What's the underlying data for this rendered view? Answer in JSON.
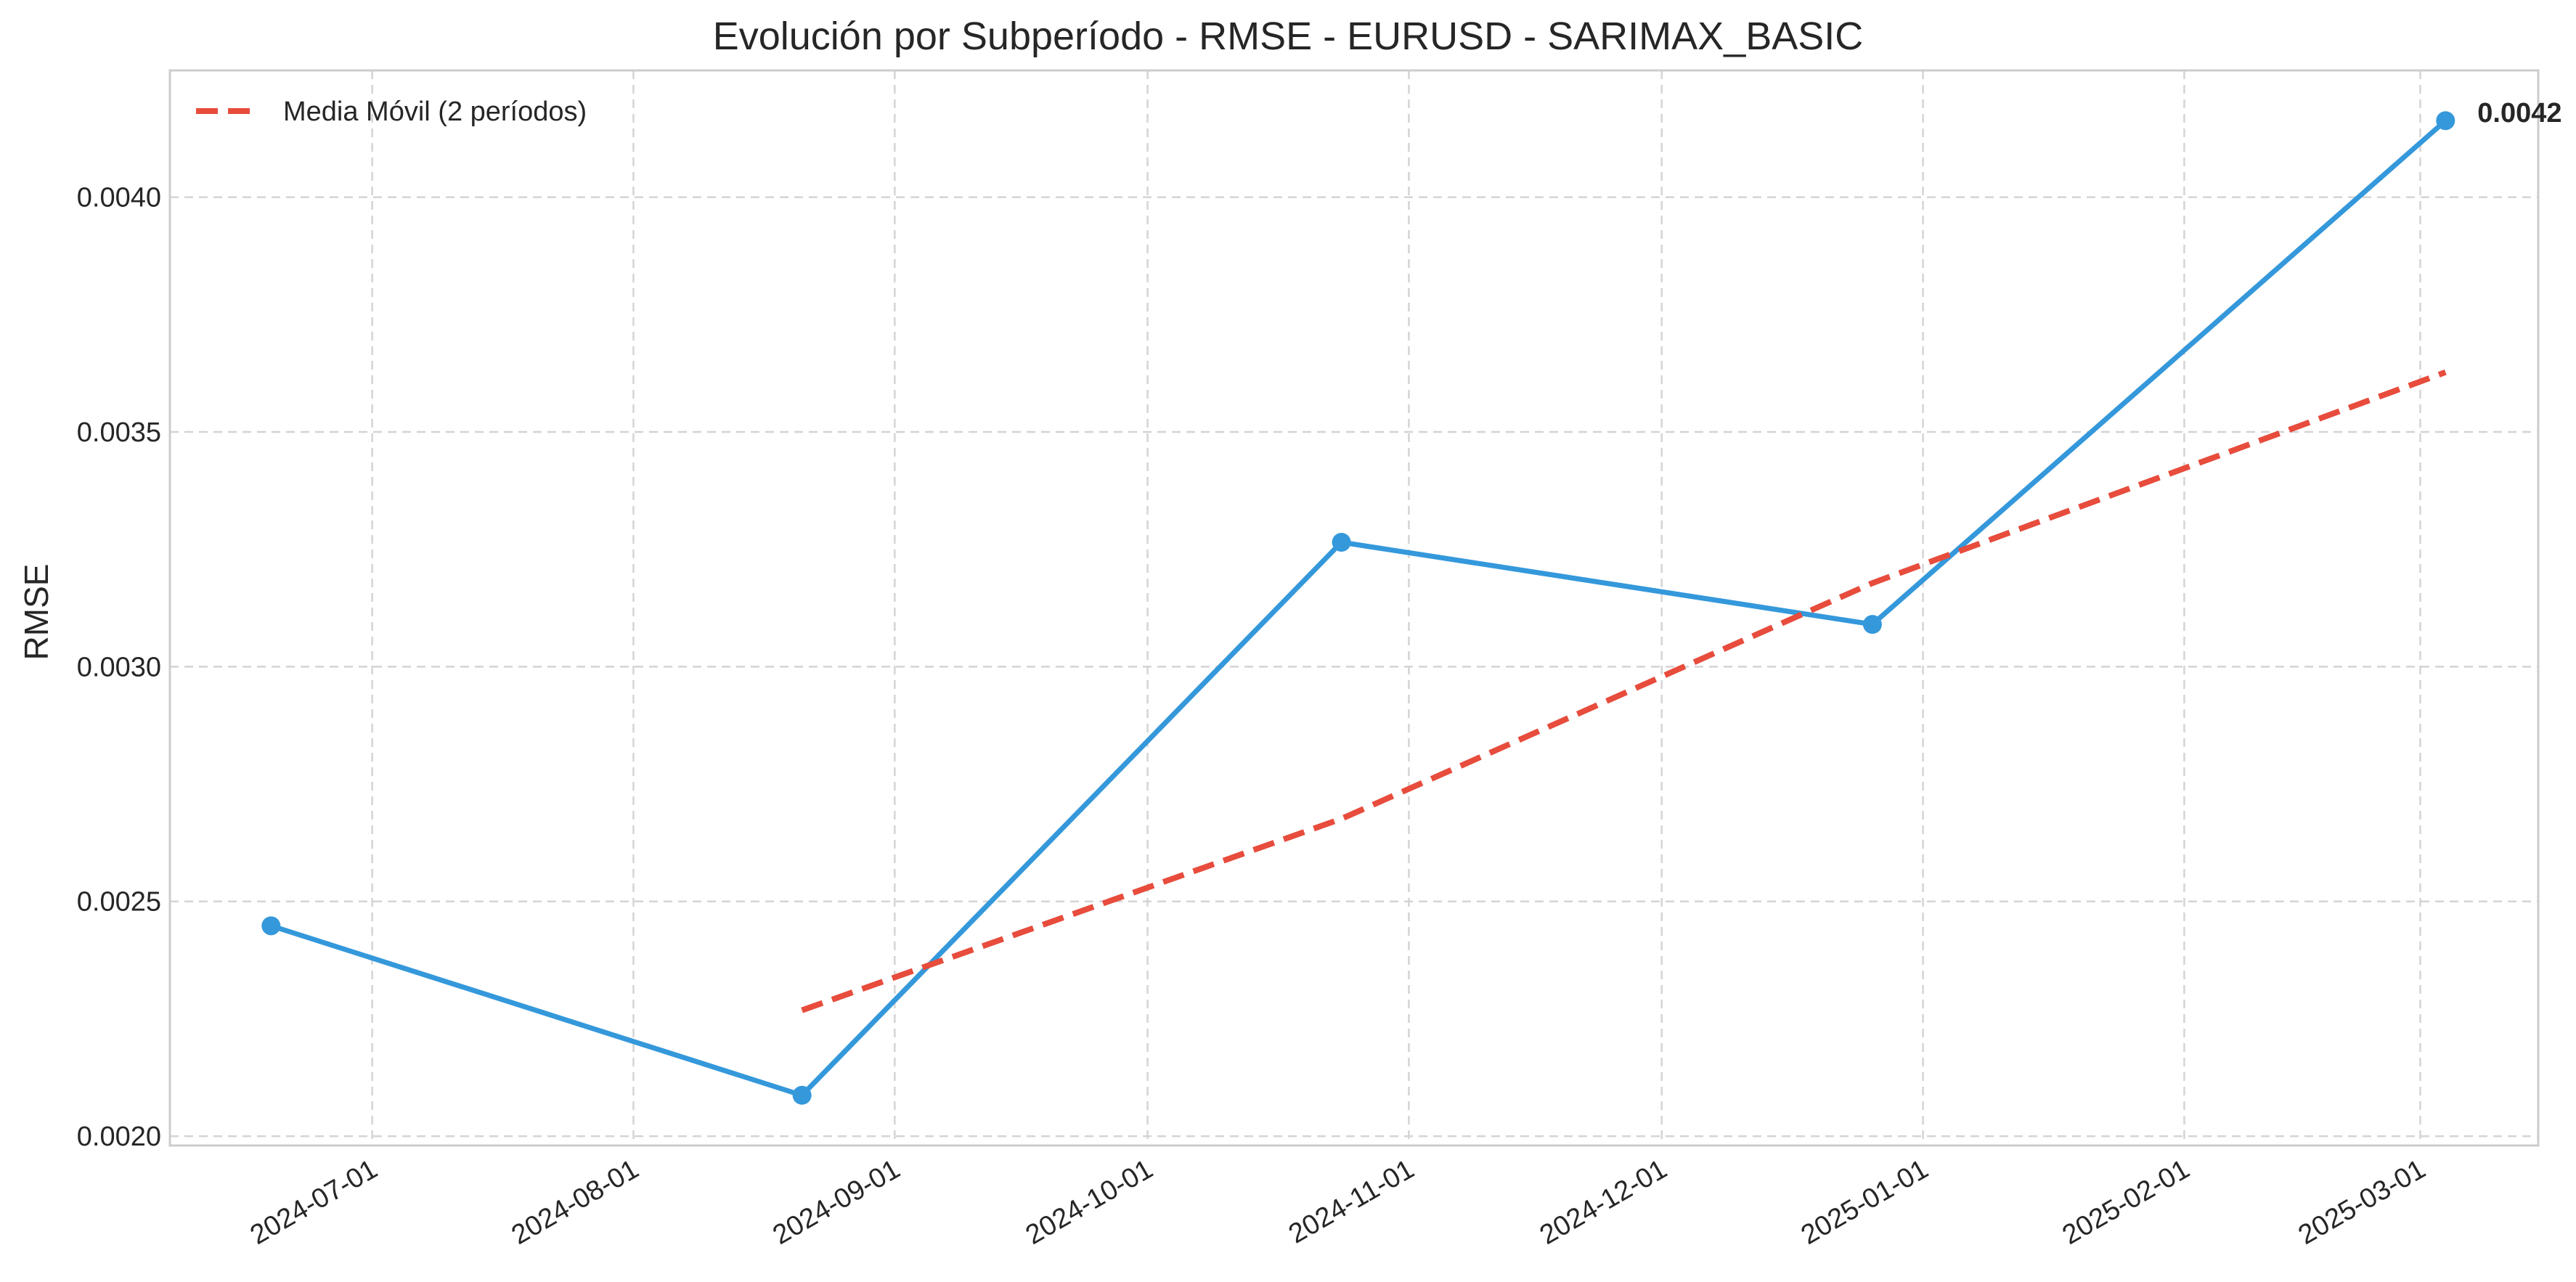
{
  "chart_data": {
    "type": "line",
    "title": "Evolución por Subperíodo - RMSE - EURUSD - SARIMAX_BASIC",
    "xlabel": "",
    "ylabel": "RMSE",
    "x_ticks": [
      "2024-07-01",
      "2024-08-01",
      "2024-09-01",
      "2024-10-01",
      "2024-11-01",
      "2024-12-01",
      "2025-01-01",
      "2025-02-01",
      "2025-03-01"
    ],
    "y_ticks": [
      "0.0020",
      "0.0025",
      "0.0030",
      "0.0035",
      "0.0040"
    ],
    "xlim": [
      "2024-06-07",
      "2025-03-15"
    ],
    "ylim": [
      0.00198,
      0.00427
    ],
    "grid": true,
    "legend_position": "top-left",
    "series": [
      {
        "color": "#3498db",
        "style": "solid",
        "markers": true,
        "points": [
          {
            "x": "2024-06-19",
            "y": 0.002448
          },
          {
            "x": "2024-08-21",
            "y": 0.002087
          },
          {
            "x": "2024-10-24",
            "y": 0.003265
          },
          {
            "x": "2024-12-26",
            "y": 0.00309
          },
          {
            "x": "2025-03-04",
            "y": 0.004163
          }
        ]
      },
      {
        "name": "Media Móvil (2 períodos)",
        "color": "#e74c3c",
        "style": "dashed",
        "markers": false,
        "points": [
          {
            "x": "2024-08-21",
            "y": 0.002268
          },
          {
            "x": "2024-10-24",
            "y": 0.002676
          },
          {
            "x": "2024-12-26",
            "y": 0.003178
          },
          {
            "x": "2025-03-04",
            "y": 0.003627
          }
        ]
      }
    ],
    "annotations": [
      {
        "text": "0.0042",
        "x": "2025-03-04",
        "y": 0.004163
      }
    ]
  }
}
